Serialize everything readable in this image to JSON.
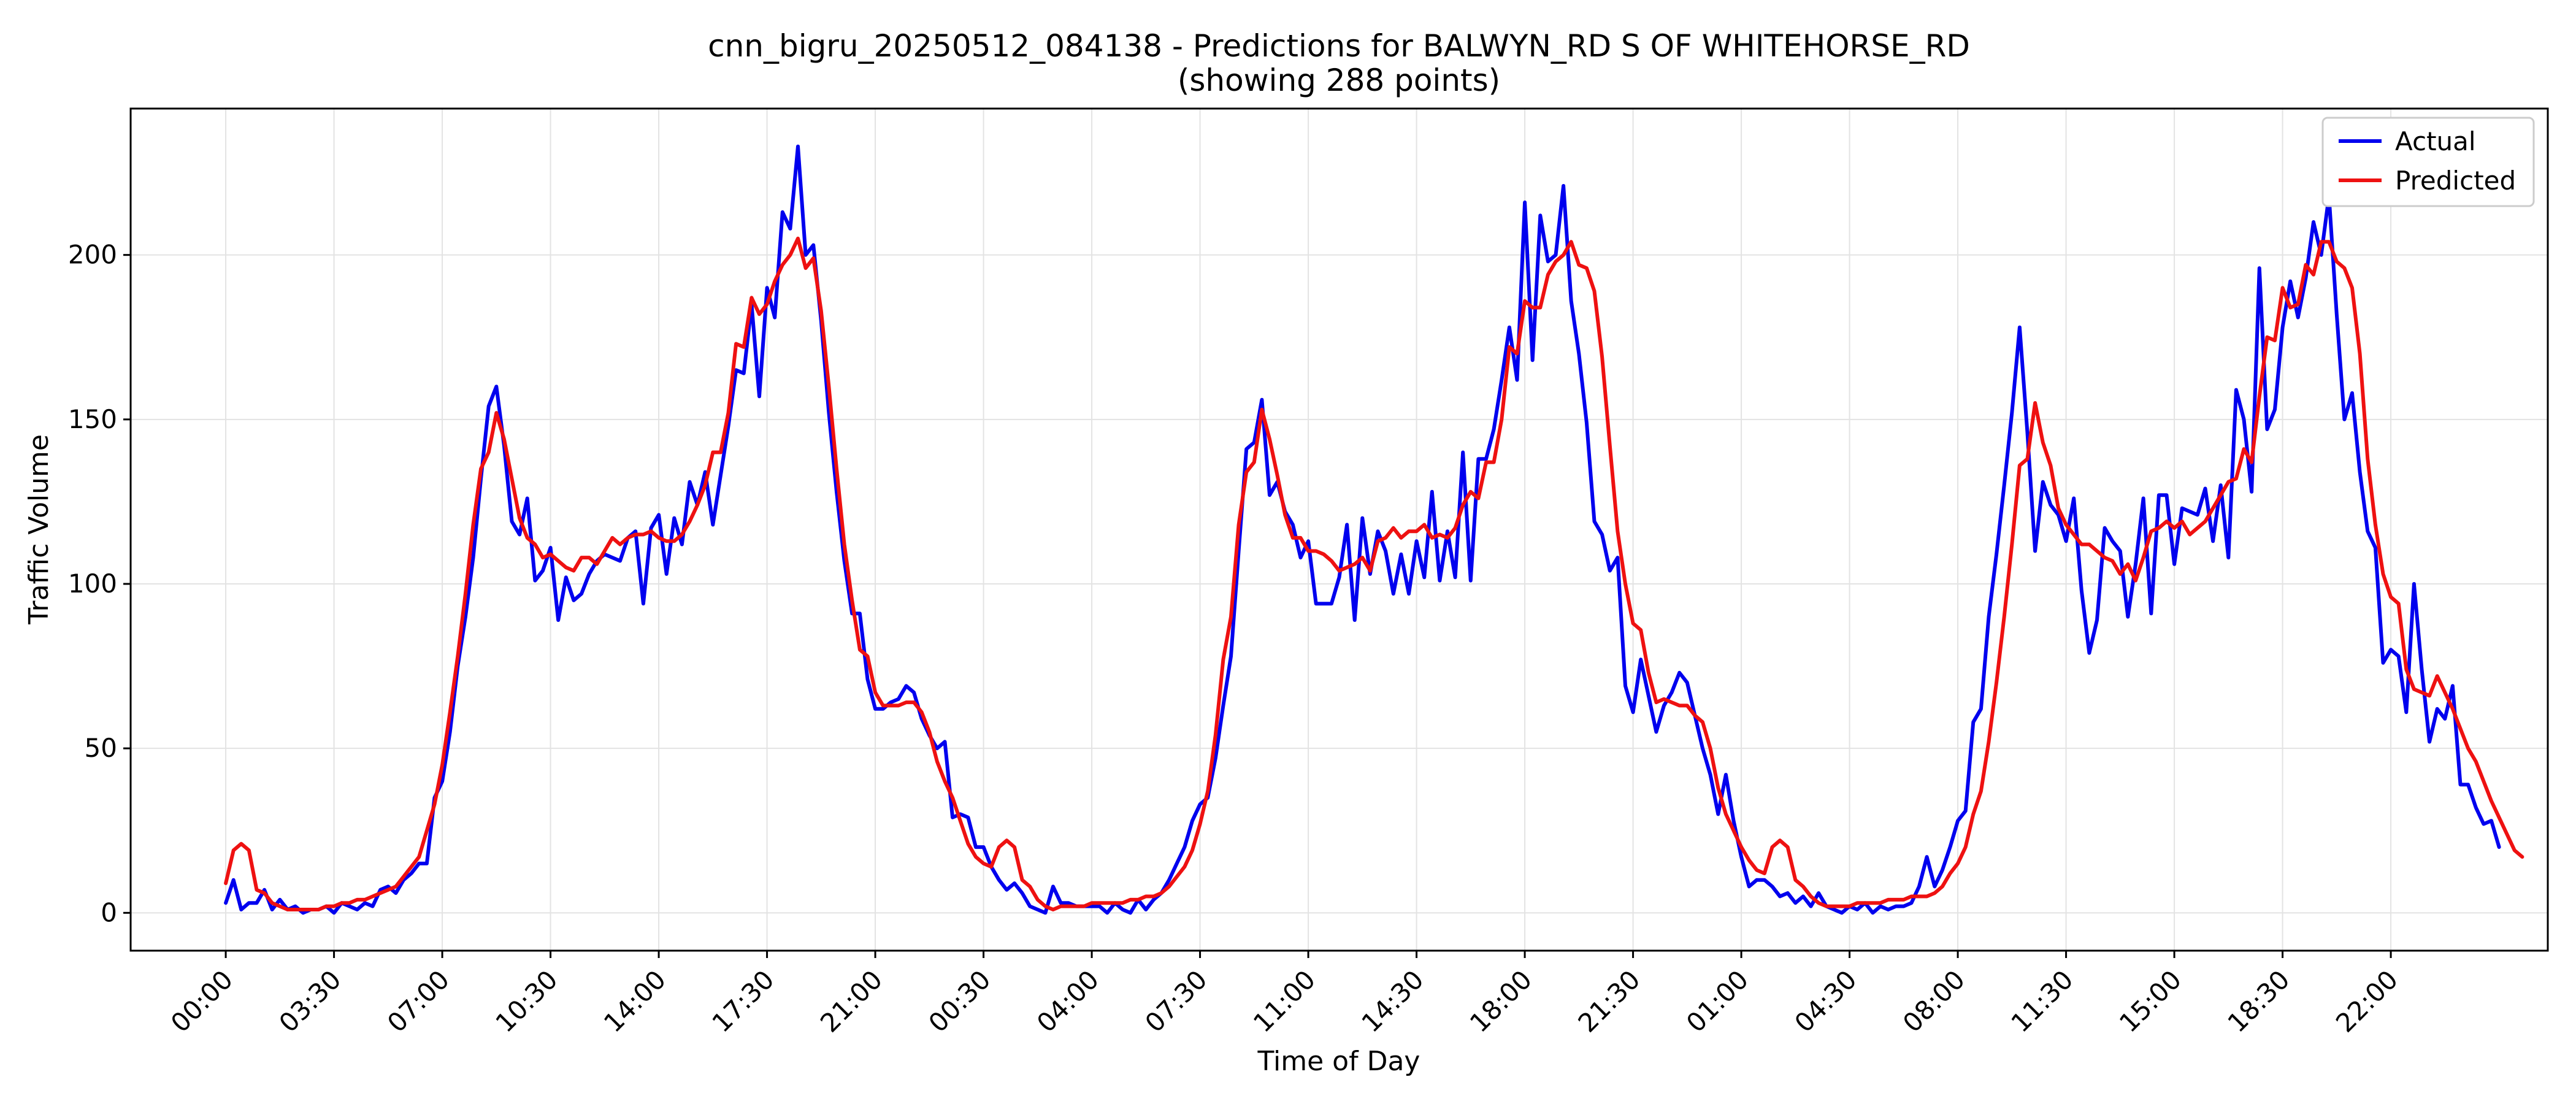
{
  "chart_data": {
    "type": "line",
    "title": "cnn_bigru_20250512_084138 - Predictions for BALWYN_RD S OF WHITEHORSE_RD",
    "subtitle": "(showing 288 points)",
    "xlabel": "Time of Day",
    "ylabel": "Traffic Volume",
    "x_tick_labels": [
      "00:00",
      "03:30",
      "07:00",
      "10:30",
      "14:00",
      "17:30",
      "21:00",
      "00:30",
      "04:00",
      "07:30",
      "11:00",
      "14:30",
      "18:00",
      "21:30",
      "01:00",
      "04:30",
      "08:00",
      "11:30",
      "15:00",
      "18:30",
      "22:00"
    ],
    "x_tick_step_points": 14,
    "xlim": [
      -12.3,
      300.3
    ],
    "y_ticks": [
      0,
      50,
      100,
      150,
      200
    ],
    "ylim": [
      -11.5,
      244.5
    ],
    "grid": true,
    "legend_position": "upper-right",
    "colors": {
      "actual": "#0000ee",
      "predicted": "#ee1111",
      "grid": "#e3e3e3",
      "axis": "#000000"
    },
    "series": [
      {
        "name": "Actual",
        "values": [
          3,
          10,
          1,
          3,
          3,
          7,
          1,
          4,
          1,
          2,
          0,
          1,
          1,
          2,
          0,
          3,
          2,
          1,
          3,
          2,
          7,
          8,
          6,
          10,
          12,
          15,
          15,
          35,
          40,
          55,
          75,
          90,
          108,
          132,
          154,
          160,
          142,
          119,
          115,
          126,
          101,
          104,
          111,
          89,
          102,
          95,
          97,
          103,
          107,
          109,
          108,
          107,
          114,
          116,
          94,
          117,
          121,
          103,
          120,
          112,
          131,
          124,
          134,
          118,
          133,
          148,
          165,
          164,
          185,
          157,
          190,
          181,
          213,
          208,
          233,
          200,
          203,
          180,
          152,
          128,
          107,
          91,
          91,
          71,
          62,
          62,
          64,
          65,
          69,
          67,
          59,
          54,
          50,
          52,
          29,
          30,
          29,
          20,
          20,
          14,
          10,
          7,
          9,
          6,
          2,
          1,
          0,
          8,
          3,
          3,
          2,
          2,
          2,
          2,
          0,
          3,
          1,
          0,
          4,
          1,
          4,
          6,
          10,
          15,
          20,
          28,
          33,
          35,
          47,
          63,
          78,
          110,
          141,
          143,
          156,
          127,
          131,
          122,
          118,
          108,
          113,
          94,
          94,
          94,
          102,
          118,
          89,
          120,
          103,
          116,
          110,
          97,
          109,
          97,
          113,
          102,
          128,
          101,
          116,
          102,
          140,
          101,
          138,
          138,
          147,
          162,
          178,
          162,
          216,
          168,
          212,
          198,
          200,
          221,
          186,
          170,
          149,
          119,
          115,
          104,
          108,
          69,
          61,
          77,
          66,
          55,
          63,
          67,
          73,
          70,
          60,
          50,
          42,
          30,
          42,
          28,
          17,
          8,
          10,
          10,
          8,
          5,
          6,
          3,
          5,
          2,
          6,
          2,
          1,
          0,
          2,
          1,
          3,
          0,
          2,
          1,
          2,
          2,
          3,
          8,
          17,
          8,
          13,
          20,
          28,
          31,
          58,
          62,
          90,
          109,
          130,
          152,
          178,
          146,
          110,
          131,
          124,
          121,
          113,
          126,
          98,
          79,
          89,
          117,
          113,
          110,
          90,
          106,
          126,
          91,
          127,
          127,
          106,
          123,
          122,
          121,
          129,
          113,
          130,
          108,
          159,
          150,
          128,
          196,
          147,
          153,
          178,
          192,
          181,
          193,
          210,
          200,
          218,
          182,
          150,
          158,
          134,
          116,
          111,
          76,
          80,
          78,
          61,
          100,
          74,
          52,
          62,
          59,
          69,
          39,
          39,
          32,
          27,
          28,
          20
        ]
      },
      {
        "name": "Predicted",
        "values": [
          9,
          19,
          21,
          19,
          7,
          6,
          3,
          2,
          1,
          1,
          1,
          1,
          1,
          2,
          2,
          3,
          3,
          4,
          4,
          5,
          6,
          7,
          8,
          11,
          14,
          17,
          25,
          33,
          45,
          61,
          78,
          97,
          118,
          135,
          140,
          152,
          144,
          132,
          120,
          114,
          112,
          108,
          109,
          107,
          105,
          104,
          108,
          108,
          106,
          110,
          114,
          112,
          114,
          115,
          115,
          116,
          114,
          113,
          113,
          115,
          119,
          124,
          130,
          140,
          140,
          152,
          173,
          172,
          187,
          182,
          185,
          192,
          197,
          200,
          205,
          196,
          199,
          183,
          160,
          135,
          112,
          95,
          80,
          78,
          67,
          63,
          63,
          63,
          64,
          64,
          61,
          55,
          46,
          40,
          35,
          28,
          21,
          17,
          15,
          14,
          20,
          22,
          20,
          10,
          8,
          4,
          2,
          1,
          2,
          2,
          2,
          2,
          3,
          3,
          3,
          3,
          3,
          4,
          4,
          5,
          5,
          6,
          8,
          11,
          14,
          19,
          27,
          37,
          54,
          77,
          90,
          118,
          134,
          137,
          153,
          144,
          133,
          121,
          114,
          114,
          110,
          110,
          109,
          107,
          104,
          105,
          106,
          108,
          104,
          113,
          114,
          117,
          114,
          116,
          116,
          118,
          114,
          115,
          114,
          117,
          124,
          128,
          126,
          137,
          137,
          150,
          172,
          170,
          186,
          184,
          184,
          194,
          198,
          200,
          204,
          197,
          196,
          189,
          169,
          142,
          116,
          100,
          88,
          86,
          73,
          64,
          65,
          64,
          63,
          63,
          60,
          58,
          50,
          38,
          30,
          25,
          20,
          16,
          13,
          12,
          20,
          22,
          20,
          10,
          8,
          5,
          3,
          2,
          2,
          2,
          2,
          3,
          3,
          3,
          3,
          4,
          4,
          4,
          5,
          5,
          5,
          6,
          8,
          12,
          15,
          20,
          30,
          37,
          52,
          70,
          90,
          112,
          136,
          138,
          155,
          143,
          136,
          123,
          118,
          115,
          112,
          112,
          110,
          108,
          107,
          103,
          106,
          101,
          108,
          116,
          117,
          119,
          117,
          119,
          115,
          117,
          119,
          123,
          127,
          131,
          132,
          141,
          137,
          157,
          175,
          174,
          190,
          184,
          185,
          197,
          194,
          204,
          204,
          198,
          196,
          190,
          170,
          138,
          118,
          103,
          96,
          94,
          74,
          68,
          67,
          66,
          72,
          67,
          62,
          56,
          50,
          46,
          40,
          34,
          29,
          24,
          19,
          17
        ]
      }
    ]
  }
}
